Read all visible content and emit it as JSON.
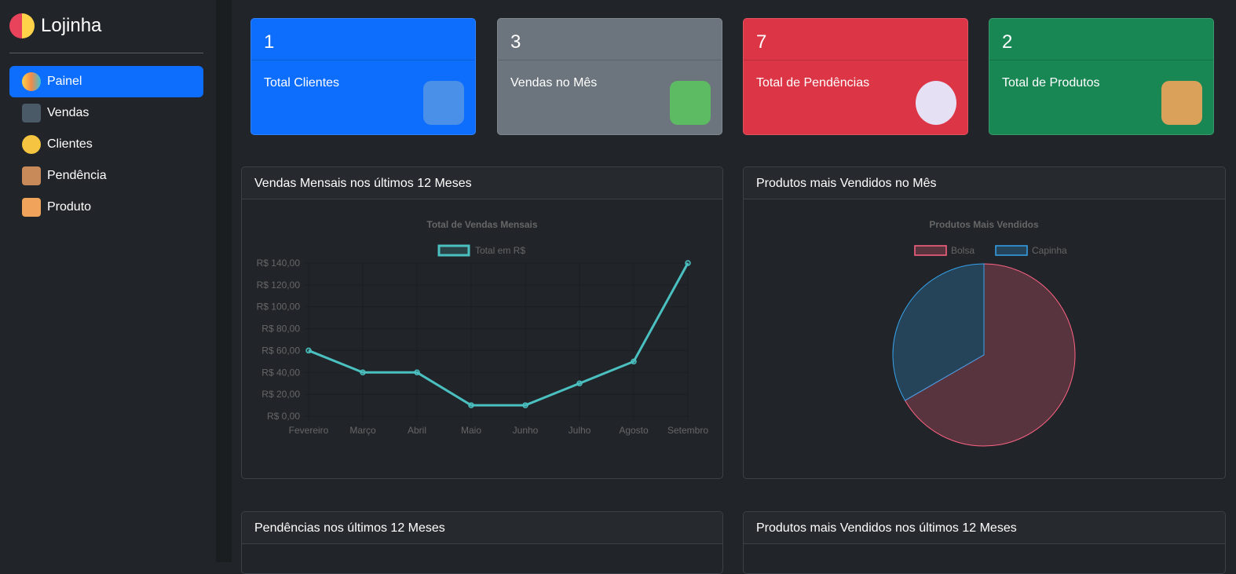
{
  "brand": {
    "name": "Lojinha"
  },
  "nav": [
    {
      "label": "Painel",
      "icon": "dashboard-icon"
    },
    {
      "label": "Vendas",
      "icon": "card-machine-icon"
    },
    {
      "label": "Clientes",
      "icon": "clients-icon"
    },
    {
      "label": "Pendência",
      "icon": "clipboard-clock-icon"
    },
    {
      "label": "Produto",
      "icon": "package-hand-icon"
    }
  ],
  "cards": [
    {
      "value": "1",
      "label": "Total Clientes",
      "color": "#0d6efd",
      "icon": "businessman-icon"
    },
    {
      "value": "3",
      "label": "Vendas no Mês",
      "color": "#6c757d",
      "icon": "money-icon"
    },
    {
      "value": "7",
      "label": "Total de Pendências",
      "color": "#dc3545",
      "icon": "x-circle-icon"
    },
    {
      "value": "2",
      "label": "Total de Produtos",
      "color": "#198754",
      "icon": "box-icon"
    }
  ],
  "panels": {
    "monthly": "Vendas Mensais nos últimos 12 Meses",
    "top_month": "Produtos mais Vendidos no Mês",
    "pending": "Pendências nos últimos 12 Meses",
    "top_year": "Produtos mais Vendidos nos últimos 12 Meses"
  },
  "chart_data": [
    {
      "type": "line",
      "title": "Total de Vendas Mensais",
      "legend": [
        "Total em R$"
      ],
      "categories": [
        "Fevereiro",
        "Março",
        "Abril",
        "Maio",
        "Junho",
        "Julho",
        "Agosto",
        "Setembro"
      ],
      "series": [
        {
          "name": "Total em R$",
          "values": [
            60,
            40,
            40,
            10,
            10,
            30,
            50,
            140
          ],
          "color": "#4bc0c0"
        }
      ],
      "yticks": [
        "R$ 0,00",
        "R$ 20,00",
        "R$ 40,00",
        "R$ 60,00",
        "R$ 80,00",
        "R$ 100,00",
        "R$ 120,00",
        "R$ 140,00"
      ],
      "ylim": [
        0,
        140
      ]
    },
    {
      "type": "pie",
      "title": "Produtos Mais Vendidos",
      "categories": [
        "Bolsa",
        "Capinha"
      ],
      "values": [
        2,
        1
      ],
      "colors": [
        "#ff6384",
        "#36a2eb"
      ]
    }
  ]
}
